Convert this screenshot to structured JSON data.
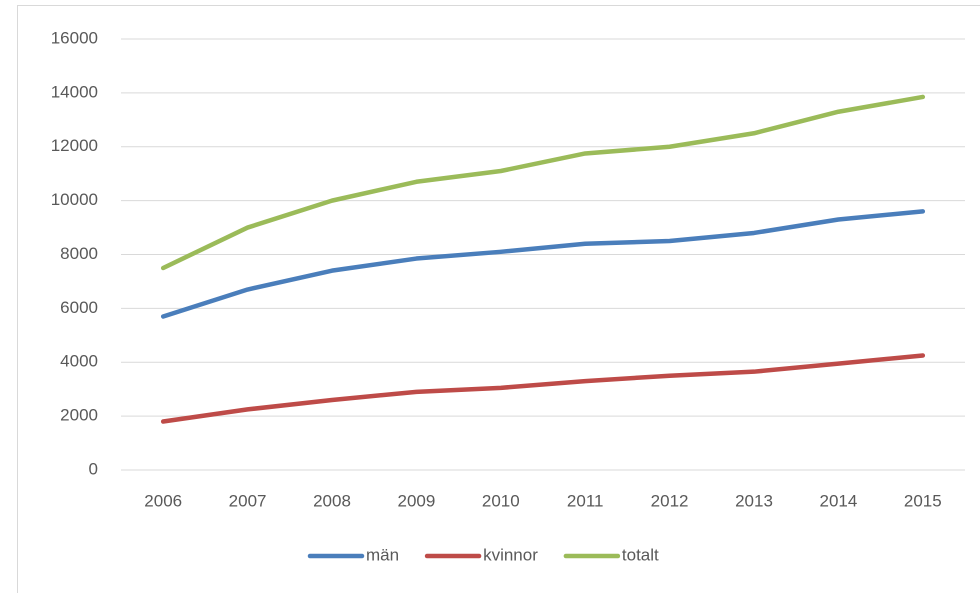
{
  "chart_data": {
    "type": "line",
    "x": [
      2006,
      2007,
      2008,
      2009,
      2010,
      2011,
      2012,
      2013,
      2014,
      2015
    ],
    "series": [
      {
        "name": "män",
        "color": "#4a7ebb",
        "values": [
          5700,
          6700,
          7400,
          7850,
          8100,
          8400,
          8500,
          8800,
          9300,
          9600
        ]
      },
      {
        "name": "kvinnor",
        "color": "#be4b48",
        "values": [
          1800,
          2250,
          2600,
          2900,
          3050,
          3300,
          3500,
          3650,
          3950,
          4250
        ]
      },
      {
        "name": "totalt",
        "color": "#9bbb59",
        "values": [
          7500,
          9000,
          10000,
          10700,
          11100,
          11750,
          12000,
          12500,
          13300,
          13850
        ]
      }
    ],
    "ylim": [
      0,
      16000
    ],
    "yticks": [
      0,
      2000,
      4000,
      6000,
      8000,
      10000,
      12000,
      14000,
      16000
    ],
    "grid": true,
    "legend": "bottom"
  }
}
